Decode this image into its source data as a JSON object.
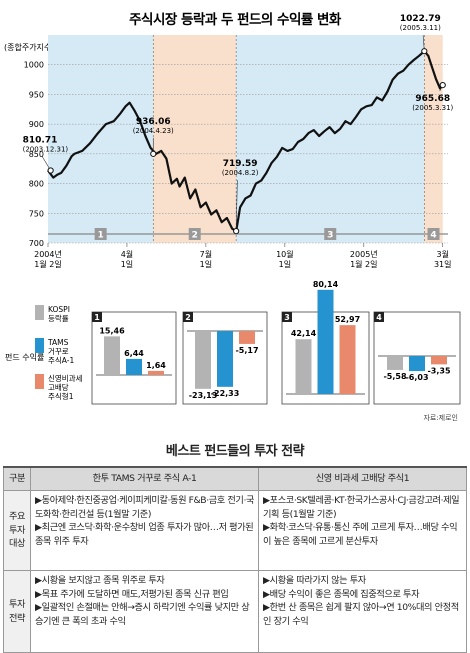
{
  "header": {
    "title": "주식시장 등락과 두 펀드의 수익률 변화",
    "unit_label": "(종합주가지수)"
  },
  "chart_data": [
    {
      "type": "line",
      "title": "주식시장 등락과 두 펀드의 수익률 변화",
      "ylabel": "(종합주가지수)",
      "ylim": [
        700,
        1050
      ],
      "yticks": [
        700,
        750,
        800,
        850,
        900,
        950,
        1000
      ],
      "grid": true,
      "x_tick_labels": [
        {
          "t": 0,
          "line1": "2004년",
          "line2": "1월 2일"
        },
        {
          "t": 3,
          "line1": "4월",
          "line2": "1일"
        },
        {
          "t": 6,
          "line1": "7월",
          "line2": "1일"
        },
        {
          "t": 9,
          "line1": "10월",
          "line2": "1일"
        },
        {
          "t": 12,
          "line1": "2005년",
          "line2": "1월 2일"
        },
        {
          "t": 15,
          "line1": "3월",
          "line2": "31일"
        }
      ],
      "series": [
        {
          "x": [
            0,
            0.2,
            0.35,
            0.5,
            0.7,
            0.9,
            1.0,
            1.3,
            1.6,
            1.9,
            2.2,
            2.5,
            2.75,
            2.95,
            3.1,
            3.3,
            3.5,
            3.7,
            3.9,
            4.1,
            4.3,
            4.5,
            4.7,
            4.9,
            5.0,
            5.2,
            5.4,
            5.6,
            5.8,
            6.0,
            6.2,
            6.4,
            6.6,
            6.8,
            7.0,
            7.15,
            7.3,
            7.5,
            7.7,
            7.9,
            8.1,
            8.3,
            8.5,
            8.7,
            8.9,
            9.1,
            9.3,
            9.5,
            9.7,
            9.9,
            10.1,
            10.3,
            10.5,
            10.7,
            10.9,
            11.1,
            11.3,
            11.5,
            11.7,
            11.9,
            12.1,
            12.3,
            12.5,
            12.7,
            12.9,
            13.1,
            13.3,
            13.5,
            13.7,
            13.9,
            14.1,
            14.3,
            14.45,
            14.6,
            14.75,
            14.9,
            15.0
          ],
          "values": [
            822,
            810,
            815,
            818,
            830,
            846,
            850,
            855,
            868,
            885,
            900,
            905,
            918,
            930,
            936,
            922,
            905,
            880,
            860,
            850,
            855,
            842,
            800,
            808,
            795,
            810,
            775,
            790,
            760,
            768,
            748,
            755,
            735,
            742,
            724,
            720,
            760,
            775,
            780,
            800,
            805,
            818,
            835,
            845,
            860,
            855,
            858,
            870,
            875,
            885,
            890,
            880,
            888,
            895,
            885,
            892,
            905,
            900,
            912,
            925,
            930,
            932,
            945,
            940,
            955,
            975,
            985,
            990,
            1000,
            1008,
            1015,
            1022.79,
            1015,
            995,
            975,
            960,
            965.68
          ]
        }
      ],
      "annotations": [
        {
          "t": 0.1,
          "value": "810.71",
          "date": "(2003.12.31)"
        },
        {
          "t": 4.0,
          "value": "936.06",
          "date": "(2004.4.23)"
        },
        {
          "t": 7.15,
          "value": "719.59",
          "date": "(2004.8.2)"
        },
        {
          "t": 14.3,
          "value": "1022.79",
          "date": "(2005.3.11)"
        },
        {
          "t": 15.0,
          "value": "965.68",
          "date": "(2005.3.31)"
        }
      ],
      "periods": [
        {
          "label": "1",
          "t0": 0,
          "t1": 4.0,
          "color": "#d6eaf6"
        },
        {
          "label": "2",
          "t0": 4.0,
          "t1": 7.15,
          "color": "#f9e0cc"
        },
        {
          "label": "3",
          "t0": 7.15,
          "t1": 14.3,
          "color": "#d6eaf6"
        },
        {
          "label": "4",
          "t0": 14.3,
          "t1": 15.0,
          "color": "#f9e0cc"
        }
      ]
    },
    {
      "type": "bar",
      "legend_side_label": "펀드 수익률",
      "legend": [
        {
          "key": "kospi",
          "name": "KOSPI 등락률",
          "color": "#b3b3b3"
        },
        {
          "key": "tams",
          "name": "TAMS 거꾸로 주식A-1",
          "color": "#2493cf"
        },
        {
          "key": "shinyoung",
          "name": "신영비과세 고배당 주식형1",
          "color": "#e8896b"
        }
      ],
      "panels": [
        {
          "label": "1",
          "values": [
            15.46,
            6.44,
            1.64
          ],
          "labels": [
            "15,46",
            "6,44",
            "1,64"
          ]
        },
        {
          "label": "2",
          "values": [
            -23.13,
            -22.33,
            -5.17
          ],
          "labels": [
            "-23,13",
            "-22,33",
            "-5,17"
          ]
        },
        {
          "label": "3",
          "values": [
            42.14,
            80.14,
            52.97
          ],
          "labels": [
            "42,14",
            "80,14",
            "52,97"
          ]
        },
        {
          "label": "4",
          "values": [
            -5.58,
            -6.03,
            -3.35
          ],
          "labels": [
            "-5,58",
            "-6,03",
            "-3,35"
          ]
        }
      ],
      "source": "자료:제로인"
    }
  ],
  "strategy": {
    "title": "베스트 펀드들의 투자 전략",
    "headers": [
      "구분",
      "한투 TAMS 거꾸로 주식 A-1",
      "신영 비과세 고배당 주식1"
    ],
    "rows": [
      {
        "label": "주요 투자 대상",
        "col1": [
          "▶동아제약·한진중공업·케이피케미칼·동원 F&B·금호 전기·국도화학·한리건설 등(1월말 기준)",
          "▶최근엔 코스닥·화학·운수창비 업종 투자가 많아…저 평가된 종목 위주 투자"
        ],
        "col2": [
          "▶포스코·SK텔레콤·KT·한국가스공사·CJ·금강고려·제일기획 등(1월말 기준)",
          "▶화학·코스닥·유통·통신 주에 고르게 투자…배당 수익이 높은 종목에 고르게 분산투자"
        ]
      },
      {
        "label": "투자 전략",
        "col1": [
          "▶시황을 보지않고 종목 위주로 투자",
          "▶목표 주가에 도달하면 매도,저평가된 종목 신규 편입",
          "▶일괄적인 손절매는 안해→증시 하락기엔 수익률 낮지만 상승기엔 큰 폭의 초과 수익"
        ],
        "col2": [
          "▶시황을 따라가지 않는 투자",
          "▶배당 수익이 좋은 종목에 집중적으로 투자",
          "▶한번 산 종목은 쉽게 팔지 않아→연 10%대의 안정적인 장기 수익"
        ]
      }
    ]
  }
}
